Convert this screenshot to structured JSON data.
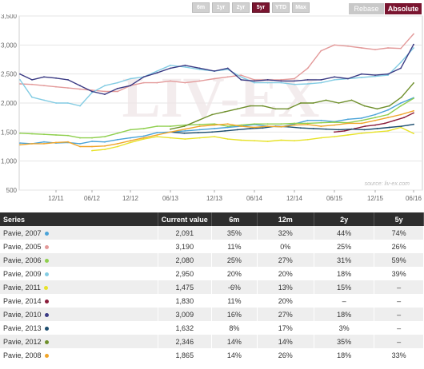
{
  "controls": {
    "ranges": [
      "6m",
      "1yr",
      "2yr",
      "5yr",
      "YTD",
      "Max"
    ],
    "active_range": "5yr",
    "rebase_label": "Rebase",
    "absolute_label": "Absolute"
  },
  "watermark": "LIV-EX",
  "source_note": "source: liv-ex.com",
  "table": {
    "headers": [
      "Series",
      "Current value",
      "6m",
      "12m",
      "2y",
      "5y"
    ],
    "rows": [
      {
        "series": "Pavie, 2007",
        "value": "2,091",
        "m6": "35%",
        "m12": "32%",
        "y2": "44%",
        "y5": "74%"
      },
      {
        "series": "Pavie, 2005",
        "value": "3,190",
        "m6": "11%",
        "m12": "0%",
        "y2": "25%",
        "y5": "26%"
      },
      {
        "series": "Pavie, 2006",
        "value": "2,080",
        "m6": "25%",
        "m12": "27%",
        "y2": "31%",
        "y5": "59%"
      },
      {
        "series": "Pavie, 2009",
        "value": "2,950",
        "m6": "20%",
        "m12": "20%",
        "y2": "18%",
        "y5": "39%"
      },
      {
        "series": "Pavie, 2011",
        "value": "1,475",
        "m6": "-6%",
        "m12": "13%",
        "y2": "15%",
        "y5": "–"
      },
      {
        "series": "Pavie, 2014",
        "value": "1,830",
        "m6": "11%",
        "m12": "20%",
        "y2": "–",
        "y5": "–"
      },
      {
        "series": "Pavie, 2010",
        "value": "3,009",
        "m6": "16%",
        "m12": "27%",
        "y2": "18%",
        "y5": "–"
      },
      {
        "series": "Pavie, 2013",
        "value": "1,632",
        "m6": "8%",
        "m12": "17%",
        "y2": "3%",
        "y5": "–"
      },
      {
        "series": "Pavie, 2012",
        "value": "2,346",
        "m6": "14%",
        "m12": "14%",
        "y2": "35%",
        "y5": "–"
      },
      {
        "series": "Pavie, 2008",
        "value": "1,865",
        "m6": "14%",
        "m12": "26%",
        "y2": "18%",
        "y5": "33%"
      }
    ]
  },
  "chart_data": {
    "type": "line",
    "x_labels": [
      "12/11",
      "06/12",
      "12/12",
      "06/13",
      "12/13",
      "06/14",
      "12/14",
      "06/15",
      "12/15",
      "06/16"
    ],
    "yticks": [
      500,
      1000,
      1500,
      2000,
      2500,
      3000,
      3500
    ],
    "ylim": [
      500,
      3500
    ],
    "grid": true,
    "series": [
      {
        "name": "Pavie, 2007",
        "color": "#4aa3d8",
        "start": "06/11",
        "end": "06/16",
        "values": [
          1310,
          1300,
          1330,
          1310,
          1320,
          1300,
          1340,
          1330,
          1370,
          1400,
          1430,
          1490,
          1500,
          1520,
          1540,
          1560,
          1580,
          1600,
          1630,
          1600,
          1590,
          1640,
          1700,
          1700,
          1680,
          1720,
          1740,
          1800,
          1880,
          2000,
          2091
        ]
      },
      {
        "name": "Pavie, 2005",
        "color": "#e39a9a",
        "start": "06/11",
        "end": "06/16",
        "values": [
          2330,
          2320,
          2300,
          2280,
          2260,
          2240,
          2220,
          2200,
          2200,
          2300,
          2350,
          2350,
          2380,
          2350,
          2380,
          2420,
          2450,
          2480,
          2400,
          2400,
          2400,
          2420,
          2600,
          2900,
          3000,
          2980,
          2950,
          2920,
          2950,
          2940,
          3190
        ]
      },
      {
        "name": "Pavie, 2006",
        "color": "#8fcf4e",
        "start": "06/11",
        "end": "06/16",
        "values": [
          1480,
          1470,
          1460,
          1450,
          1440,
          1400,
          1400,
          1420,
          1480,
          1540,
          1560,
          1600,
          1600,
          1620,
          1630,
          1640,
          1600,
          1620,
          1640,
          1640,
          1640,
          1650,
          1650,
          1660,
          1670,
          1660,
          1700,
          1750,
          1800,
          1950,
          2080
        ]
      },
      {
        "name": "Pavie, 2009",
        "color": "#83cce3",
        "start": "06/11",
        "end": "06/16",
        "values": [
          2400,
          2100,
          2050,
          2000,
          2000,
          1950,
          2180,
          2300,
          2350,
          2420,
          2450,
          2550,
          2650,
          2620,
          2580,
          2550,
          2580,
          2450,
          2350,
          2350,
          2350,
          2320,
          2330,
          2350,
          2400,
          2420,
          2440,
          2460,
          2480,
          2700,
          2950
        ]
      },
      {
        "name": "Pavie, 2011",
        "color": "#e7e22a",
        "start": "06/12",
        "end": "06/16",
        "values": [
          1180,
          1200,
          1250,
          1320,
          1380,
          1420,
          1400,
          1380,
          1400,
          1420,
          1380,
          1360,
          1350,
          1340,
          1360,
          1350,
          1370,
          1400,
          1420,
          1450,
          1480,
          1500,
          1520,
          1580,
          1475
        ]
      },
      {
        "name": "Pavie, 2014",
        "color": "#8a1c3a",
        "start": "06/15",
        "end": "06/16",
        "values": [
          1500,
          1520,
          1560,
          1600,
          1620,
          1650,
          1700,
          1750,
          1830
        ]
      },
      {
        "name": "Pavie, 2010",
        "color": "#3b3b84",
        "start": "06/11",
        "end": "06/16",
        "values": [
          2500,
          2400,
          2450,
          2430,
          2400,
          2300,
          2200,
          2150,
          2250,
          2300,
          2450,
          2520,
          2600,
          2650,
          2600,
          2550,
          2600,
          2400,
          2380,
          2400,
          2380,
          2380,
          2400,
          2400,
          2450,
          2420,
          2500,
          2480,
          2500,
          2600,
          3009
        ]
      },
      {
        "name": "Pavie, 2013",
        "color": "#1d4d6e",
        "start": "06/13",
        "end": "06/16",
        "values": [
          1500,
          1480,
          1490,
          1500,
          1520,
          1540,
          1560,
          1570,
          1600,
          1590,
          1570,
          1560,
          1550,
          1540,
          1550,
          1540,
          1560,
          1580,
          1600,
          1632
        ]
      },
      {
        "name": "Pavie, 2012",
        "color": "#6e8f2b",
        "start": "06/13",
        "end": "06/16",
        "values": [
          1550,
          1600,
          1700,
          1800,
          1850,
          1900,
          1950,
          1950,
          1900,
          1900,
          2000,
          2000,
          2050,
          2000,
          2050,
          1950,
          1900,
          1950,
          2100,
          2346
        ]
      },
      {
        "name": "Pavie, 2008",
        "color": "#f0a52a",
        "start": "06/11",
        "end": "06/16",
        "values": [
          1280,
          1300,
          1300,
          1320,
          1330,
          1250,
          1250,
          1260,
          1300,
          1350,
          1400,
          1450,
          1500,
          1550,
          1600,
          1620,
          1640,
          1600,
          1580,
          1600,
          1590,
          1620,
          1630,
          1600,
          1620,
          1650,
          1650,
          1700,
          1750,
          1800,
          1865
        ]
      }
    ]
  }
}
